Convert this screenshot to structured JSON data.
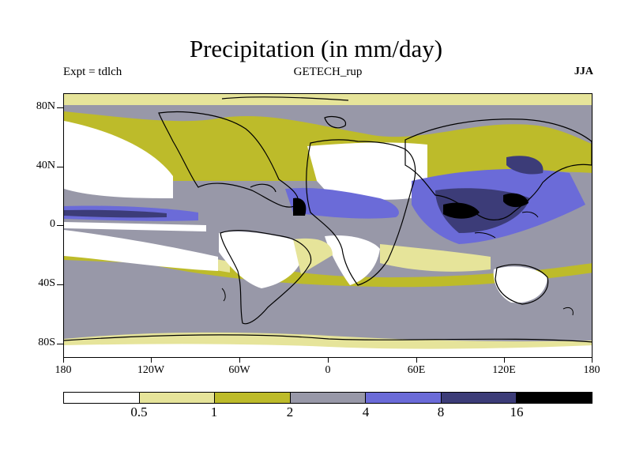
{
  "title": "Precipitation (in mm/day)",
  "subtitle_left": "Expt = tdlch",
  "subtitle_center": "GETECH_rup",
  "subtitle_right": "JJA",
  "lat_labels": [
    "80N",
    "40N",
    "0",
    "40S",
    "80S"
  ],
  "lon_labels": [
    "180",
    "120W",
    "60W",
    "0",
    "60E",
    "120E",
    "180"
  ],
  "colorbar_labels": [
    "0.5",
    "1",
    "2",
    "4",
    "8",
    "16"
  ],
  "colors": {
    "bin0": "#ffffff",
    "bin1": "#e6e49a",
    "bin2": "#bdbb2a",
    "bin3": "#9898a8",
    "bin4": "#6b6bd8",
    "bin5": "#3c3c78",
    "bin6": "#000000"
  }
}
